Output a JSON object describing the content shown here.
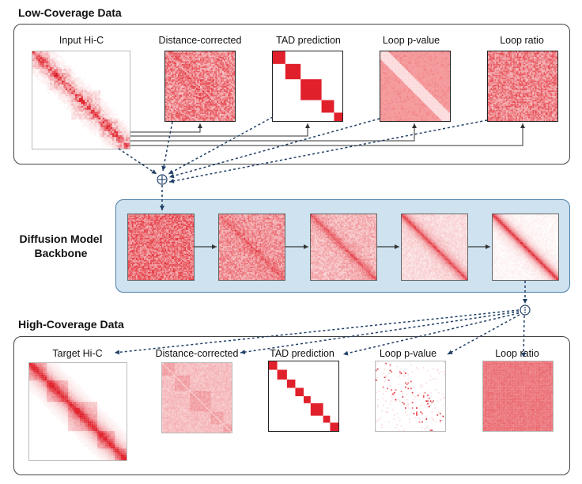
{
  "sections": {
    "low_title": "Low-Coverage Data",
    "high_title": "High-Coverage Data",
    "backbone_line1": "Diffusion Model",
    "backbone_line2": "Backbone"
  },
  "low_panels": [
    {
      "label": "Input Hi-C",
      "kind": "hic"
    },
    {
      "label": "Distance-corrected",
      "kind": "distcorr"
    },
    {
      "label": "TAD prediction",
      "kind": "tad"
    },
    {
      "label": "Loop p-value",
      "kind": "pval"
    },
    {
      "label": "Loop ratio",
      "kind": "ratio"
    }
  ],
  "high_panels": [
    {
      "label": "Target Hi-C",
      "kind": "hic"
    },
    {
      "label": "Distance-corrected",
      "kind": "distcorr"
    },
    {
      "label": "TAD prediction",
      "kind": "tad"
    },
    {
      "label": "Loop p-value",
      "kind": "pval"
    },
    {
      "label": "Loop ratio",
      "kind": "ratio"
    }
  ],
  "diffusion_steps": 5,
  "symbols": {
    "concat": "⊕",
    "split": "⁝"
  },
  "colors": {
    "heatmap_red": "#e0202a",
    "backbone_fill": "#cfe2ef",
    "backbone_border": "#4a7ea8",
    "dashed_arrow": "#1f3f66",
    "solid_arrow": "#333333"
  }
}
